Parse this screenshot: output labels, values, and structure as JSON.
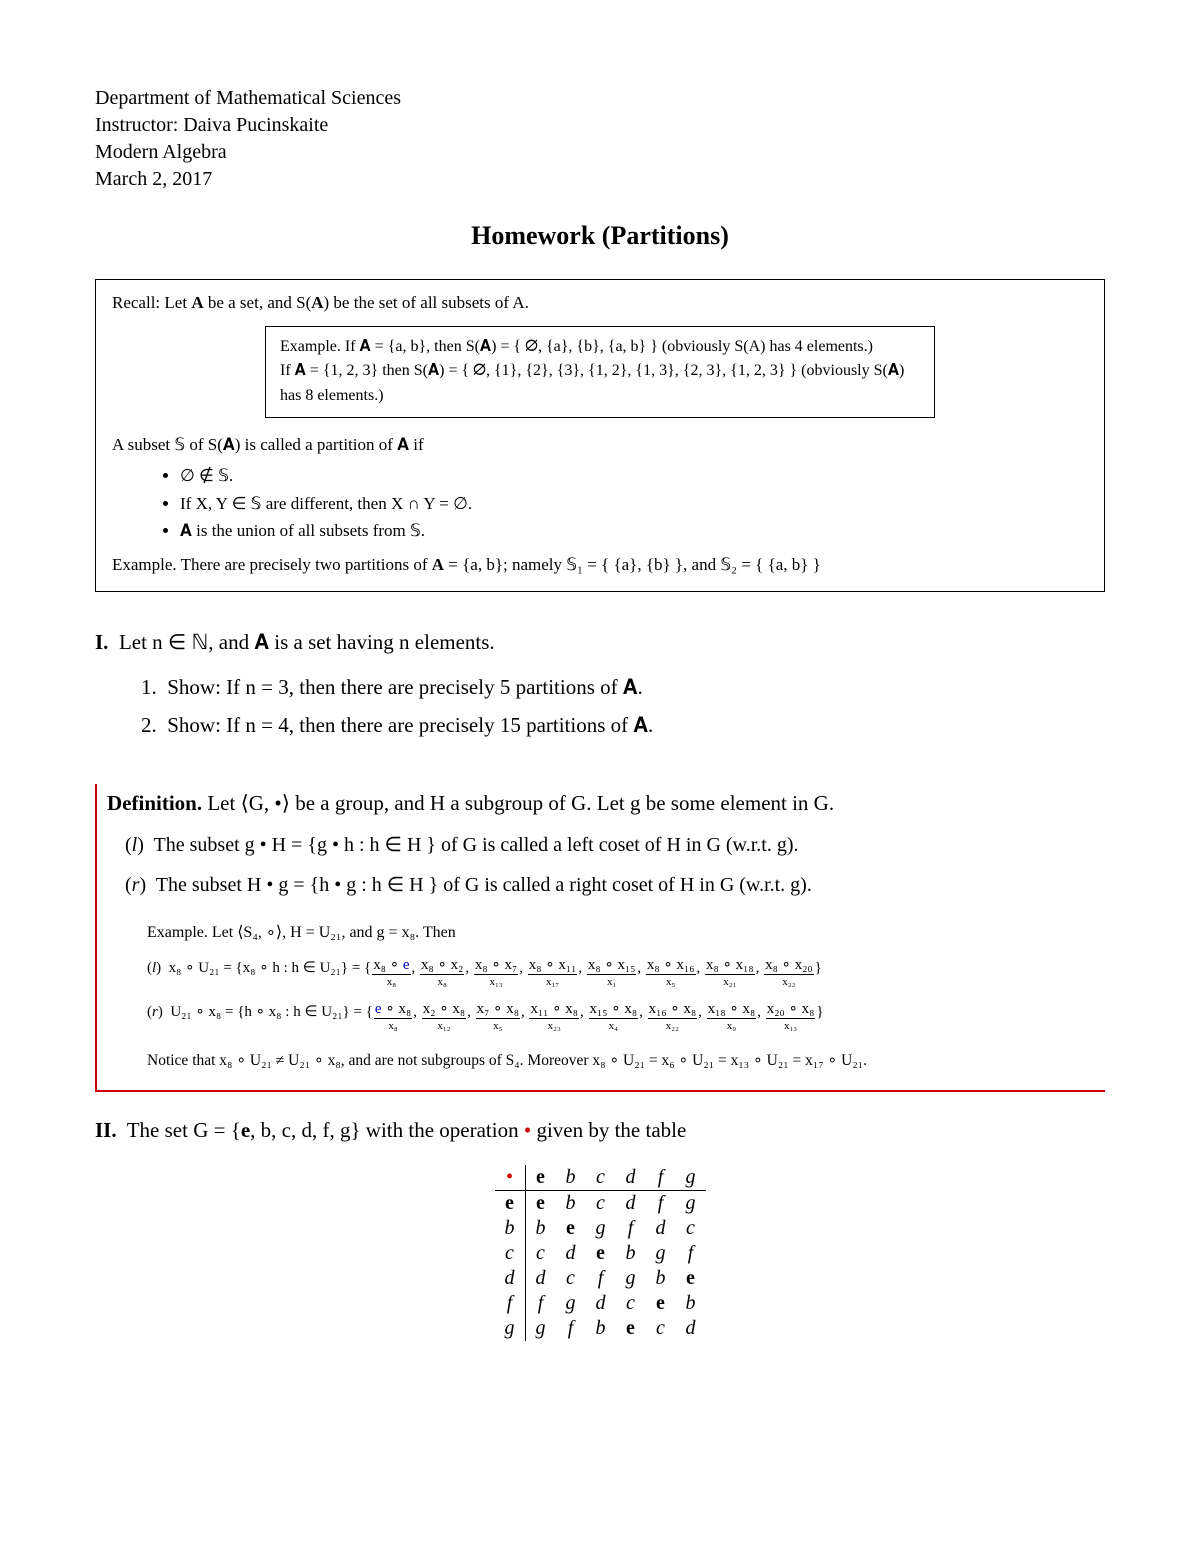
{
  "header": {
    "line1": "Department of Mathematical Sciences",
    "line2": "Instructor: Daiva Pucinskaite",
    "line3": "Modern Algebra",
    "line4": "March 2, 2017"
  },
  "title": "Homework (Partitions)",
  "recall_box": {
    "intro_prefix": "Recall:  Let ",
    "intro_mid": " be a set, and S(",
    "intro_end": ") be the set of all subsets of A.",
    "example_box": {
      "line1": "Example. If 𝐀 = {a, b}, then S(𝐀) = { ∅, {a}, {b}, {a, b} } (obviously S(A) has 4 elements.)",
      "line2": "If 𝐀 = {1, 2, 3} then S(𝐀) = { ∅, {1}, {2}, {3}, {1, 2}, {1, 3}, {2, 3}, {1, 2, 3} } (obviously S(𝐀) has 8 elements.)"
    },
    "partition_def": "A subset 𝕊 of S(𝐀) is called a partition of 𝐀 if",
    "bullets": {
      "b1": "∅ ∉ 𝕊.",
      "b2": "If X, Y ∈ 𝕊 are different, then X ∩ Y = ∅.",
      "b3": "𝐀 is the union of all subsets from 𝕊."
    },
    "example_line_prefix": "Example. There are precisely two partitions of ",
    "example_line_mid": " = {a, b}; namely 𝕊₁ = { {a}, {b} }, and 𝕊₂ = { {a, b} }"
  },
  "problem1": {
    "intro": "Let n ∈ ℕ, and 𝐀 is a set having n elements.",
    "item1": "Show: If n = 3, then there are precisely 5 partitions of 𝐀.",
    "item2": "Show: If n = 4, then there are precisely 15 partitions of 𝐀."
  },
  "definition_block": {
    "head_prefix": "Definition.",
    "head_body": " Let ⟨G, •⟩ be a group, and H a subgroup of G. Let g be some element in G.",
    "l_item": "The subset g • H = {g • h  :  h ∈ H } of G is called a left coset of H in G (w.r.t. g).",
    "r_item": "The subset H • g = {h • g  :  h ∈ H } of G is called a right coset of H in G (w.r.t. g).",
    "example_head": "Example. Let ⟨S₄, ∘⟩,  H = U₂₁, and g = x₈. Then",
    "l_coset_prefix": "x₈ ∘ U₂₁ = {x₈ ∘ h  :  h ∈ U₂₁} = {",
    "r_coset_prefix": "U₂₁ ∘ x₈ = {h ∘ x₈  :  h ∈ U₂₁} = {",
    "l_under": [
      {
        "top": "x₈ ∘ e",
        "bot": "x₈",
        "blue": true
      },
      {
        "top": "x₈ ∘ x₂",
        "bot": "x₈"
      },
      {
        "top": "x₈ ∘ x₇",
        "bot": "x₁₃"
      },
      {
        "top": "x₈ ∘ x₁₁",
        "bot": "x₁₇"
      },
      {
        "top": "x₈ ∘ x₁₅",
        "bot": "x₁"
      },
      {
        "top": "x₈ ∘ x₁₆",
        "bot": "x₅"
      },
      {
        "top": "x₈ ∘ x₁₈",
        "bot": "x₂₁"
      },
      {
        "top": "x₈ ∘ x₂₀",
        "bot": "x₂₂"
      }
    ],
    "r_under": [
      {
        "top": "e ∘ x₈",
        "bot": "x₈",
        "blue": true
      },
      {
        "top": "x₂ ∘ x₈",
        "bot": "x₁₂"
      },
      {
        "top": "x₇ ∘ x₈",
        "bot": "x₅"
      },
      {
        "top": "x₁₁ ∘ x₈",
        "bot": "x₂₃"
      },
      {
        "top": "x₁₅ ∘ x₈",
        "bot": "x₄"
      },
      {
        "top": "x₁₆ ∘ x₈",
        "bot": "x₂₂"
      },
      {
        "top": "x₁₈ ∘ x₈",
        "bot": "x₉"
      },
      {
        "top": "x₂₀ ∘ x₈",
        "bot": "x₁₃"
      }
    ],
    "notice": "Notice that x₈ ∘ U₂₁ ≠ U₂₁ ∘ x₈, and are not subgroups of S₄.  Moreover x₈ ∘ U₂₁ = x₆ ∘ U₂₁ = x₁₃ ∘ U₂₁ = x₁₇ ∘ U₂₁."
  },
  "problem2": {
    "intro_prefix": "The set G = {",
    "intro_elems": ", b, c, d, f, g} with the operation ",
    "intro_suffix": " given by the table"
  },
  "cayley": {
    "headers": [
      "e",
      "b",
      "c",
      "d",
      "f",
      "g"
    ],
    "rows": [
      {
        "h": "e",
        "cells": [
          "e",
          "b",
          "c",
          "d",
          "f",
          "g"
        ]
      },
      {
        "h": "b",
        "cells": [
          "b",
          "e",
          "g",
          "f",
          "d",
          "c"
        ]
      },
      {
        "h": "c",
        "cells": [
          "c",
          "d",
          "e",
          "b",
          "g",
          "f"
        ]
      },
      {
        "h": "d",
        "cells": [
          "d",
          "c",
          "f",
          "g",
          "b",
          "e"
        ]
      },
      {
        "h": "f",
        "cells": [
          "f",
          "g",
          "d",
          "c",
          "e",
          "b"
        ]
      },
      {
        "h": "g",
        "cells": [
          "g",
          "f",
          "b",
          "e",
          "c",
          "d"
        ]
      }
    ]
  },
  "colors": {
    "text": "#000000",
    "background": "#ffffff",
    "red": "#cc0000",
    "blue": "#0000cc"
  }
}
